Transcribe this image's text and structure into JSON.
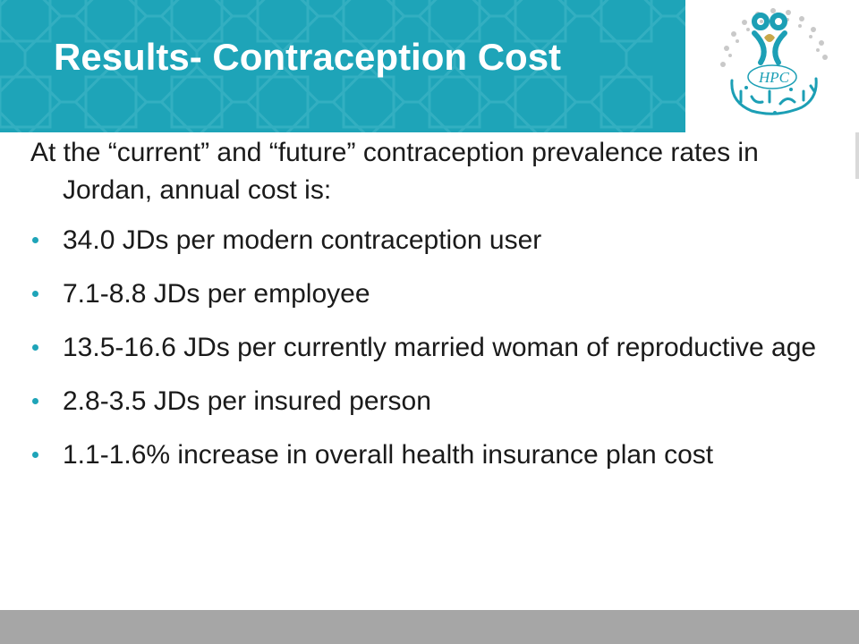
{
  "slide": {
    "title": "Results- Contraception Cost",
    "intro": "At the “current” and “future” contraception prevalence rates in Jordan, annual cost is:",
    "bullets": [
      "34.0  JDs per modern contraception user",
      "7.1-8.8  JDs per employee",
      "13.5-16.6  JDs per currently married woman of reproductive age",
      "2.8-3.5  JDs per insured person",
      "1.1-1.6%  increase in overall health insurance plan cost"
    ]
  },
  "logo": {
    "text": "HPC",
    "icon": "hpc-emblem-icon"
  },
  "colors": {
    "header": "#1ea4b8",
    "header_pattern": "#3bb3c5",
    "bullet": "#1ea4b8",
    "footer": "#a6a6a6",
    "logo_primary": "#1c9fb5",
    "logo_accent": "#c8a84b"
  }
}
